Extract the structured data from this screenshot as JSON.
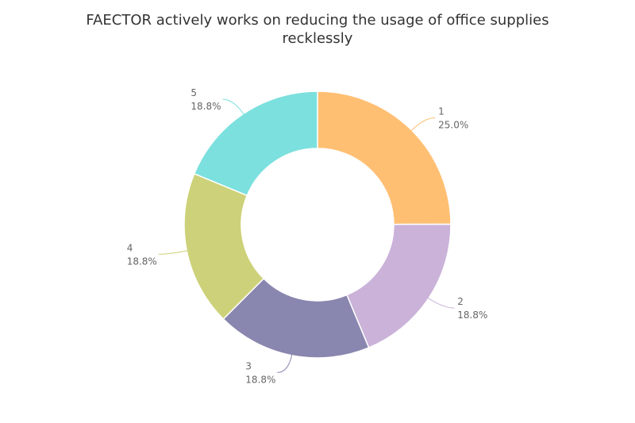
{
  "chart_data": {
    "type": "pie",
    "variant": "donut",
    "title": "FAECTOR actively works on reducing the usage of office supplies recklessly",
    "title_lines": [
      "FAECTOR actively works on reducing the usage of office supplies",
      "recklessly"
    ],
    "categories": [
      "1",
      "2",
      "3",
      "4",
      "5"
    ],
    "values": [
      25.0,
      18.8,
      18.8,
      18.8,
      18.8
    ],
    "value_labels": [
      "25.0%",
      "18.8%",
      "18.8%",
      "18.8%",
      "18.8%"
    ],
    "colors": [
      "#FFBF73",
      "#CAB2D9",
      "#8986AF",
      "#CDD179",
      "#7BE0DE"
    ],
    "legend": "none"
  }
}
